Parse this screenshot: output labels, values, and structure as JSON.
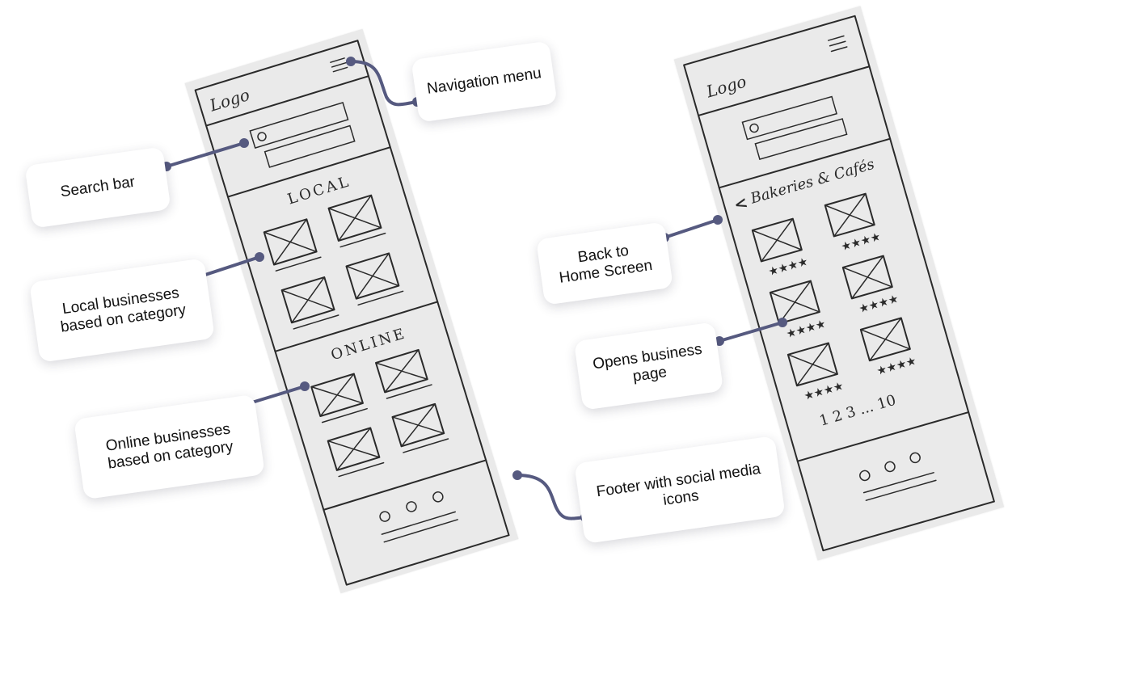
{
  "sketch_left": {
    "logo": "Logo",
    "section_local": "LOCAL",
    "section_online": "ONLINE"
  },
  "sketch_right": {
    "logo": "Logo",
    "category_title": "Bakeries & Cafés",
    "back_arrow": "<",
    "pagination": "1  2  3 ... 10"
  },
  "callouts": {
    "navigation_menu": "Navigation menu",
    "search_bar": "Search bar",
    "local_businesses": [
      "Local businesses",
      "based on category"
    ],
    "online_businesses": [
      "Online businesses",
      "based on category"
    ],
    "footer": [
      "Footer with social media",
      "icons"
    ],
    "back_home": [
      "Back to",
      "Home Screen"
    ],
    "opens_business": [
      "Opens business",
      "page"
    ]
  },
  "colors": {
    "connector": "#565a80",
    "paper": "#eaeaea",
    "ink": "#2a2a2a"
  }
}
